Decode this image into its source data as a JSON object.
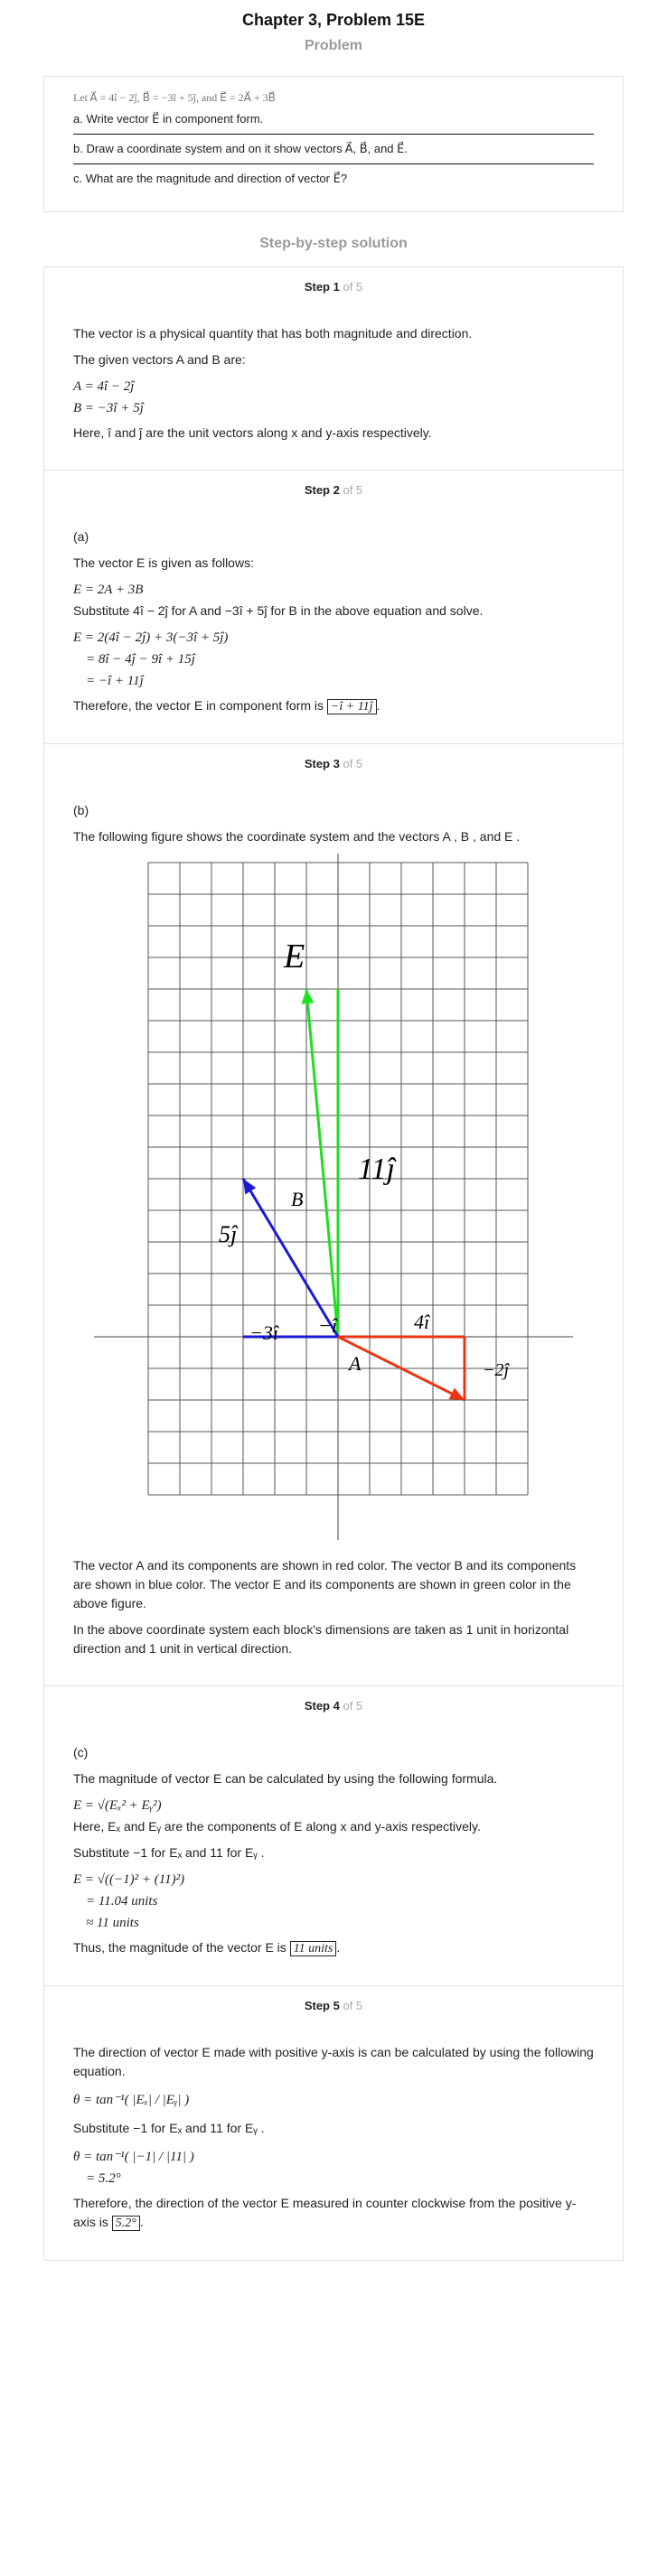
{
  "title": "Chapter 3, Problem 15E",
  "problem": {
    "heading": "Problem",
    "given": "Let A⃗ = 4î − 2ĵ, B⃗ = −3î + 5ĵ, and E⃗ = 2A⃗ + 3B⃗",
    "parts": [
      "a. Write vector E⃗ in component form.",
      "b. Draw a coordinate system and on it show vectors A⃗, B⃗, and E⃗.",
      "c. What are the magnitude and direction of vector E⃗?"
    ]
  },
  "solution": {
    "heading": "Step-by-step solution",
    "of_total": "of 5",
    "steps": [
      {
        "label": "Step 1",
        "intro": "The vector is a physical quantity that has both magnitude and direction.",
        "given_line": "The given vectors  A  and  B are:",
        "eq1": "A = 4î − 2ĵ",
        "eq2": "B = −3î + 5ĵ",
        "note": "Here,  î and  ĵ  are the unit vectors along x and y-axis respectively."
      },
      {
        "label": "Step 2",
        "part": "(a)",
        "line1": "The vector  E  is given as follows:",
        "eq1": "E = 2A + 3B",
        "line2": "Substitute  4î − 2ĵ for  A  and  −3î + 5ĵ for  B  in the above equation and solve.",
        "eq2": "E = 2(4î − 2ĵ) + 3(−3î + 5ĵ)",
        "eq3": "= 8î − 4ĵ − 9î + 15ĵ",
        "eq4": "= −î + 11ĵ",
        "conclusion": "Therefore, the vector  E in component form is",
        "answer": "−î + 11ĵ"
      },
      {
        "label": "Step 3",
        "part": "(b)",
        "line1": "The following figure shows the coordinate system and the vectors  A ,  B , and  E .",
        "figure": {
          "labels": {
            "E": "E⃗",
            "B": "B⃗",
            "A": "A⃗",
            "Ey": "11ĵ",
            "By": "5ĵ",
            "Bx": "−3î",
            "Ex": "−î",
            "Ax": "4î",
            "Ay": "−2ĵ"
          },
          "vectors": {
            "A": {
              "x": 4,
              "y": -2,
              "color": "#ee3311"
            },
            "B": {
              "x": -3,
              "y": 5,
              "color": "#1a1ad6"
            },
            "E": {
              "x": -1,
              "y": 11,
              "color": "#22dd22"
            }
          }
        },
        "para1": "The vector  A  and its components are shown in red color. The vector  B  and its components are shown in blue color. The vector  E  and its components are shown in green color in the above figure.",
        "para2": "In the above coordinate system each block's dimensions are taken as 1 unit in horizontal direction and 1 unit in vertical direction."
      },
      {
        "label": "Step 4",
        "part": "(c)",
        "line1": "The magnitude of vector  E  can be calculated by using the following formula.",
        "eq1": "E = √(Eₓ² + Eᵧ²)",
        "line2": "Here,  Eₓ and  Eᵧ  are the components of  E  along x and y-axis respectively.",
        "line3": "Substitute  −1 for  Eₓ and  11 for Eᵧ .",
        "eq2": "E = √((−1)² + (11)²)",
        "eq3": "= 11.04 units",
        "eq4": "≈ 11 units",
        "conclusion": "Thus, the magnitude of the vector  E is",
        "answer": "11 units"
      },
      {
        "label": "Step 5",
        "line1": "The direction of vector  E  made with positive y-axis is can be calculated by using the following equation.",
        "eq1": "θ = tan⁻¹( |Eₓ| / |Eᵧ| )",
        "line2": "Substitute  −1 for  Eₓ and  11 for Eᵧ .",
        "eq2": "θ = tan⁻¹( |−1| / |11| )",
        "eq3": "= 5.2°",
        "conclusion": "Therefore, the direction of the vector  E measured in counter clockwise from the positive y-axis is",
        "answer": "5.2°"
      }
    ]
  }
}
